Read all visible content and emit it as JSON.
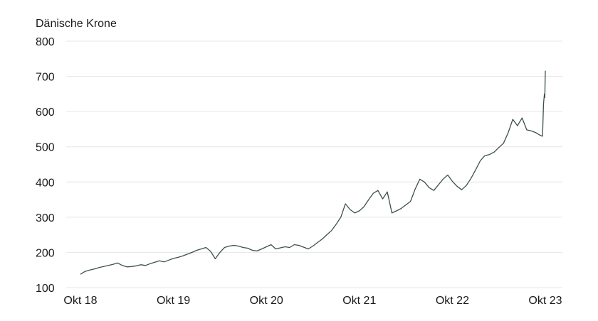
{
  "chart_data": {
    "type": "line",
    "title": "",
    "ylabel": "Dänische Krone",
    "xlabel": "",
    "ylim": [
      100,
      800
    ],
    "yticks": [
      100,
      200,
      300,
      400,
      500,
      600,
      700,
      800
    ],
    "xticks": [
      {
        "label": "Okt 18",
        "x": 2018.75
      },
      {
        "label": "Okt 19",
        "x": 2019.75
      },
      {
        "label": "Okt 20",
        "x": 2020.75
      },
      {
        "label": "Okt 21",
        "x": 2021.75
      },
      {
        "label": "Okt 22",
        "x": 2022.75
      },
      {
        "label": "Okt 23",
        "x": 2023.75
      }
    ],
    "xlim": [
      2018.75,
      2023.75
    ],
    "grid": true,
    "legend": "none",
    "colors": {
      "line": "#3d4f4f",
      "grid": "#e6e6e6",
      "text": "#1a1a1a"
    },
    "series": [
      {
        "points": [
          [
            2018.75,
            138
          ],
          [
            2018.8,
            146
          ],
          [
            2018.85,
            150
          ],
          [
            2018.9,
            153
          ],
          [
            2018.95,
            157
          ],
          [
            2019.0,
            160
          ],
          [
            2019.05,
            163
          ],
          [
            2019.1,
            166
          ],
          [
            2019.15,
            170
          ],
          [
            2019.2,
            163
          ],
          [
            2019.25,
            159
          ],
          [
            2019.3,
            160
          ],
          [
            2019.35,
            162
          ],
          [
            2019.4,
            165
          ],
          [
            2019.45,
            163
          ],
          [
            2019.5,
            168
          ],
          [
            2019.55,
            172
          ],
          [
            2019.6,
            176
          ],
          [
            2019.65,
            173
          ],
          [
            2019.7,
            178
          ],
          [
            2019.75,
            183
          ],
          [
            2019.8,
            186
          ],
          [
            2019.85,
            190
          ],
          [
            2019.9,
            195
          ],
          [
            2019.95,
            200
          ],
          [
            2020.0,
            206
          ],
          [
            2020.05,
            210
          ],
          [
            2020.1,
            214
          ],
          [
            2020.15,
            203
          ],
          [
            2020.2,
            182
          ],
          [
            2020.25,
            200
          ],
          [
            2020.3,
            214
          ],
          [
            2020.35,
            218
          ],
          [
            2020.4,
            220
          ],
          [
            2020.45,
            218
          ],
          [
            2020.5,
            214
          ],
          [
            2020.55,
            212
          ],
          [
            2020.6,
            206
          ],
          [
            2020.65,
            204
          ],
          [
            2020.7,
            210
          ],
          [
            2020.75,
            216
          ],
          [
            2020.8,
            222
          ],
          [
            2020.85,
            210
          ],
          [
            2020.9,
            213
          ],
          [
            2020.95,
            216
          ],
          [
            2021.0,
            214
          ],
          [
            2021.05,
            222
          ],
          [
            2021.1,
            220
          ],
          [
            2021.15,
            215
          ],
          [
            2021.2,
            210
          ],
          [
            2021.25,
            218
          ],
          [
            2021.3,
            228
          ],
          [
            2021.35,
            238
          ],
          [
            2021.4,
            250
          ],
          [
            2021.45,
            262
          ],
          [
            2021.5,
            280
          ],
          [
            2021.55,
            300
          ],
          [
            2021.6,
            338
          ],
          [
            2021.65,
            322
          ],
          [
            2021.7,
            312
          ],
          [
            2021.75,
            318
          ],
          [
            2021.8,
            330
          ],
          [
            2021.85,
            350
          ],
          [
            2021.9,
            368
          ],
          [
            2021.95,
            376
          ],
          [
            2022.0,
            352
          ],
          [
            2022.05,
            372
          ],
          [
            2022.1,
            312
          ],
          [
            2022.15,
            318
          ],
          [
            2022.2,
            325
          ],
          [
            2022.25,
            335
          ],
          [
            2022.3,
            345
          ],
          [
            2022.35,
            380
          ],
          [
            2022.4,
            408
          ],
          [
            2022.45,
            400
          ],
          [
            2022.5,
            384
          ],
          [
            2022.55,
            376
          ],
          [
            2022.6,
            392
          ],
          [
            2022.65,
            408
          ],
          [
            2022.7,
            420
          ],
          [
            2022.75,
            402
          ],
          [
            2022.8,
            388
          ],
          [
            2022.85,
            378
          ],
          [
            2022.9,
            390
          ],
          [
            2022.95,
            410
          ],
          [
            2023.0,
            434
          ],
          [
            2023.05,
            460
          ],
          [
            2023.1,
            475
          ],
          [
            2023.15,
            478
          ],
          [
            2023.2,
            485
          ],
          [
            2023.25,
            498
          ],
          [
            2023.3,
            510
          ],
          [
            2023.35,
            540
          ],
          [
            2023.4,
            578
          ],
          [
            2023.45,
            560
          ],
          [
            2023.5,
            582
          ],
          [
            2023.55,
            548
          ],
          [
            2023.6,
            545
          ],
          [
            2023.65,
            540
          ],
          [
            2023.7,
            532
          ],
          [
            2023.72,
            530
          ],
          [
            2023.73,
            620
          ],
          [
            2023.74,
            650
          ],
          [
            2023.745,
            640
          ],
          [
            2023.75,
            716
          ]
        ]
      }
    ]
  }
}
